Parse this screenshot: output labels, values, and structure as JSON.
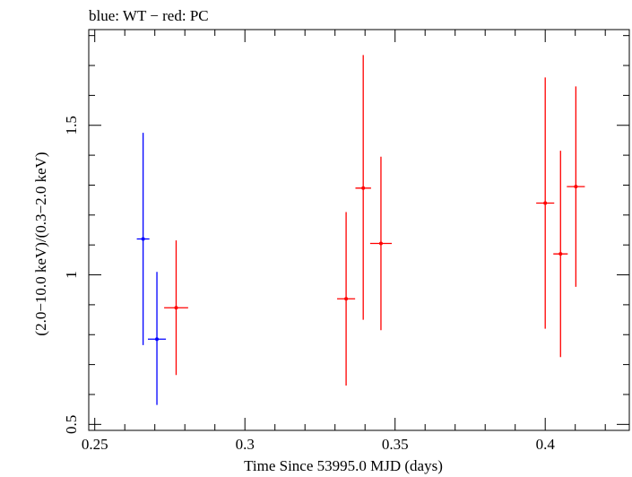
{
  "chart_data": {
    "type": "scatter",
    "title": "blue: WT − red: PC",
    "xlabel": "Time Since 53995.0 MJD (days)",
    "ylabel": "(2.0−10.0 keV)/(0.3−2.0 keV)",
    "xlim": [
      0.248,
      0.428
    ],
    "ylim": [
      0.48,
      1.82
    ],
    "x_ticks": [
      "0.25",
      "0.3",
      "0.35",
      "0.4"
    ],
    "y_ticks": [
      "0.5",
      "1",
      "1.5"
    ],
    "grid": false,
    "colors": {
      "wt": "#0000ff",
      "pc": "#ff0000"
    },
    "series": [
      {
        "color": "#0000ff",
        "points": [
          {
            "x": 0.2661,
            "xerr": 0.0021,
            "y": 1.12,
            "ylo": 0.765,
            "yhi": 1.475
          },
          {
            "x": 0.2707,
            "xerr": 0.003,
            "y": 0.785,
            "ylo": 0.565,
            "yhi": 1.01
          }
        ]
      },
      {
        "color": "#ff0000",
        "points": [
          {
            "x": 0.2771,
            "xerr": 0.004,
            "y": 0.89,
            "ylo": 0.665,
            "yhi": 1.115
          },
          {
            "x": 0.3337,
            "xerr": 0.003,
            "y": 0.92,
            "ylo": 0.63,
            "yhi": 1.21
          },
          {
            "x": 0.3394,
            "xerr": 0.0026,
            "y": 1.29,
            "ylo": 0.85,
            "yhi": 1.735
          },
          {
            "x": 0.3453,
            "xerr": 0.0036,
            "y": 1.105,
            "ylo": 0.815,
            "yhi": 1.395
          },
          {
            "x": 0.4,
            "xerr": 0.003,
            "y": 1.24,
            "ylo": 0.82,
            "yhi": 1.66
          },
          {
            "x": 0.4051,
            "xerr": 0.0024,
            "y": 1.07,
            "ylo": 0.725,
            "yhi": 1.415
          },
          {
            "x": 0.4102,
            "xerr": 0.003,
            "y": 1.295,
            "ylo": 0.96,
            "yhi": 1.63
          }
        ]
      }
    ]
  }
}
